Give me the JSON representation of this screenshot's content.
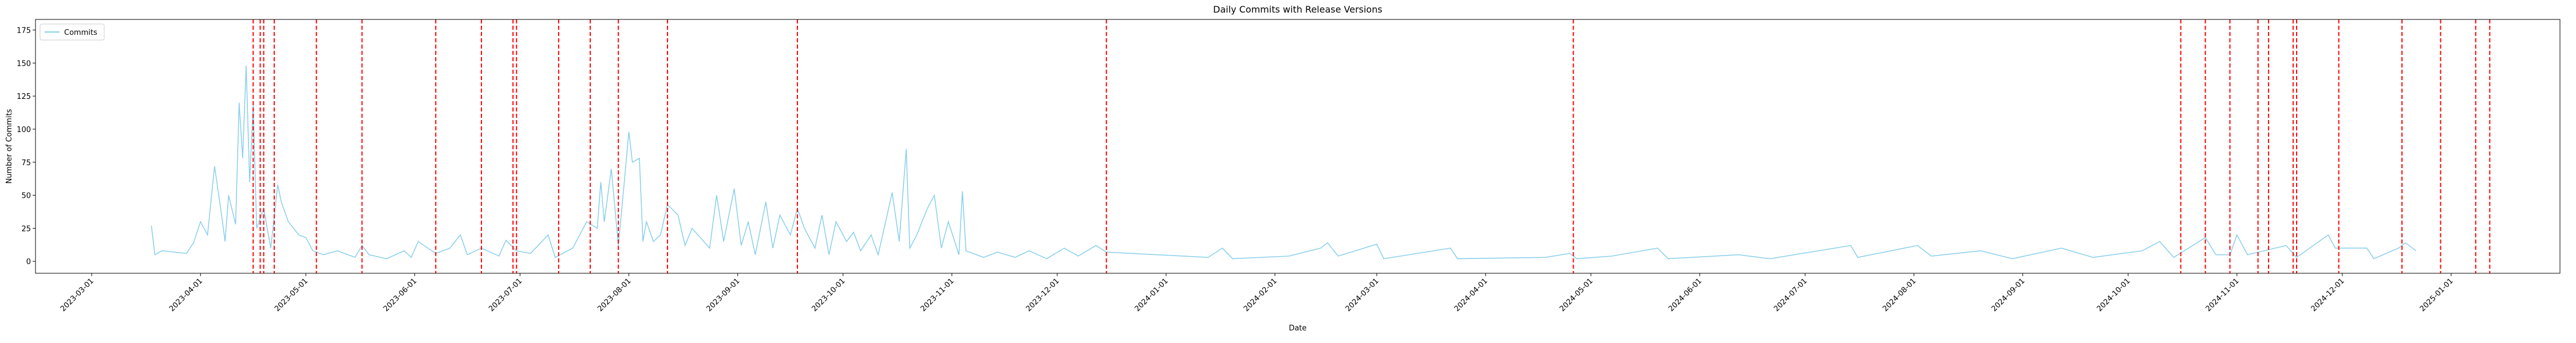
{
  "chart_data": {
    "type": "line",
    "title": "Daily Commits with Release Versions",
    "x_label": "Date",
    "y_label": "Number of Commits",
    "x": [
      "2023-03-18",
      "2023-03-19",
      "2023-03-21",
      "2023-03-28",
      "2023-03-30",
      "2023-04-01",
      "2023-04-03",
      "2023-04-05",
      "2023-04-07",
      "2023-04-08",
      "2023-04-09",
      "2023-04-11",
      "2023-04-12",
      "2023-04-13",
      "2023-04-14",
      "2023-04-15",
      "2023-04-16",
      "2023-04-17",
      "2023-04-19",
      "2023-04-21",
      "2023-04-23",
      "2023-04-24",
      "2023-04-26",
      "2023-04-29",
      "2023-05-01",
      "2023-05-03",
      "2023-05-06",
      "2023-05-10",
      "2023-05-15",
      "2023-05-17",
      "2023-05-19",
      "2023-05-24",
      "2023-05-29",
      "2023-05-31",
      "2023-06-02",
      "2023-06-07",
      "2023-06-11",
      "2023-06-14",
      "2023-06-16",
      "2023-06-20",
      "2023-06-25",
      "2023-06-27",
      "2023-06-30",
      "2023-07-04",
      "2023-07-09",
      "2023-07-11",
      "2023-07-16",
      "2023-07-20",
      "2023-07-23",
      "2023-07-24",
      "2023-07-25",
      "2023-07-27",
      "2023-07-29",
      "2023-07-30",
      "2023-08-01",
      "2023-08-02",
      "2023-08-04",
      "2023-08-05",
      "2023-08-06",
      "2023-08-08",
      "2023-08-10",
      "2023-08-12",
      "2023-08-15",
      "2023-08-17",
      "2023-08-19",
      "2023-08-24",
      "2023-08-26",
      "2023-08-28",
      "2023-08-31",
      "2023-09-02",
      "2023-09-04",
      "2023-09-06",
      "2023-09-09",
      "2023-09-11",
      "2023-09-13",
      "2023-09-16",
      "2023-09-18",
      "2023-09-20",
      "2023-09-23",
      "2023-09-25",
      "2023-09-27",
      "2023-09-29",
      "2023-10-02",
      "2023-10-04",
      "2023-10-06",
      "2023-10-09",
      "2023-10-11",
      "2023-10-15",
      "2023-10-17",
      "2023-10-19",
      "2023-10-20",
      "2023-10-22",
      "2023-10-25",
      "2023-10-27",
      "2023-10-29",
      "2023-10-31",
      "2023-11-03",
      "2023-11-04",
      "2023-11-05",
      "2023-11-10",
      "2023-11-14",
      "2023-11-19",
      "2023-11-23",
      "2023-11-28",
      "2023-12-03",
      "2023-12-07",
      "2023-12-12",
      "2023-12-15",
      "2024-01-13",
      "2024-01-17",
      "2024-01-20",
      "2024-02-05",
      "2024-02-14",
      "2024-02-16",
      "2024-02-19",
      "2024-03-01",
      "2024-03-03",
      "2024-03-22",
      "2024-03-24",
      "2024-04-18",
      "2024-04-25",
      "2024-04-27",
      "2024-05-07",
      "2024-05-20",
      "2024-05-23",
      "2024-06-12",
      "2024-06-21",
      "2024-07-14",
      "2024-07-16",
      "2024-08-02",
      "2024-08-06",
      "2024-08-20",
      "2024-08-29",
      "2024-09-12",
      "2024-09-21",
      "2024-10-05",
      "2024-10-10",
      "2024-10-14",
      "2024-10-23",
      "2024-10-26",
      "2024-10-30",
      "2024-11-01",
      "2024-11-04",
      "2024-11-15",
      "2024-11-18",
      "2024-11-27",
      "2024-11-29",
      "2024-12-08",
      "2024-12-10",
      "2024-12-17",
      "2024-12-19",
      "2024-12-22"
    ],
    "series": [
      {
        "name": "Commits",
        "color": "#87ceeb",
        "values": [
          27,
          5,
          8,
          6,
          14,
          30,
          20,
          72,
          35,
          15,
          50,
          28,
          120,
          78,
          148,
          60,
          118,
          25,
          40,
          10,
          58,
          45,
          30,
          20,
          18,
          8,
          5,
          8,
          3,
          12,
          5,
          2,
          8,
          3,
          15,
          6,
          10,
          20,
          5,
          10,
          4,
          16,
          8,
          6,
          20,
          3,
          10,
          30,
          25,
          60,
          30,
          70,
          12,
          40,
          98,
          75,
          78,
          15,
          30,
          15,
          20,
          43,
          35,
          12,
          25,
          10,
          50,
          15,
          55,
          12,
          30,
          5,
          45,
          10,
          35,
          20,
          40,
          25,
          10,
          35,
          5,
          30,
          15,
          22,
          8,
          20,
          5,
          52,
          15,
          85,
          10,
          20,
          40,
          50,
          10,
          30,
          5,
          53,
          8,
          3,
          7,
          3,
          8,
          2,
          10,
          4,
          12,
          7,
          3,
          10,
          2,
          4,
          10,
          14,
          4,
          13,
          2,
          10,
          2,
          3,
          6,
          2,
          4,
          10,
          2,
          5,
          2,
          12,
          3,
          12,
          4,
          8,
          2,
          10,
          3,
          8,
          15,
          3,
          18,
          5,
          5,
          20,
          5,
          12,
          3,
          20,
          10,
          10,
          2,
          10,
          14,
          8
        ]
      }
    ],
    "releases": [
      "2023-04-16",
      "2023-04-18",
      "2023-04-19",
      "2023-04-22",
      "2023-05-04",
      "2023-05-17",
      "2023-06-07",
      "2023-06-20",
      "2023-06-29",
      "2023-06-30",
      "2023-07-12",
      "2023-07-21",
      "2023-07-29",
      "2023-08-12",
      "2023-09-18",
      "2023-12-15",
      "2024-04-26",
      "2024-10-16",
      "2024-10-23",
      "2024-10-30",
      "2024-11-07",
      "2024-11-10",
      "2024-11-17",
      "2024-11-18",
      "2024-11-30",
      "2024-12-18",
      "2024-12-29",
      "2025-01-08",
      "2025-01-12"
    ],
    "release_color": "#ff0000",
    "xlim": [
      "2023-02-13",
      "2025-02-01"
    ],
    "xticks": [
      "2023-03-01",
      "2023-04-01",
      "2023-05-01",
      "2023-06-01",
      "2023-07-01",
      "2023-08-01",
      "2023-09-01",
      "2023-10-01",
      "2023-11-01",
      "2023-12-01",
      "2024-01-01",
      "2024-02-01",
      "2024-03-01",
      "2024-04-01",
      "2024-05-01",
      "2024-06-01",
      "2024-07-01",
      "2024-08-01",
      "2024-09-01",
      "2024-10-01",
      "2024-11-01",
      "2024-12-01",
      "2025-01-01"
    ],
    "ylim": [
      -9,
      183
    ],
    "yticks": [
      0,
      25,
      50,
      75,
      100,
      125,
      150,
      175
    ],
    "legend": "upper left"
  }
}
